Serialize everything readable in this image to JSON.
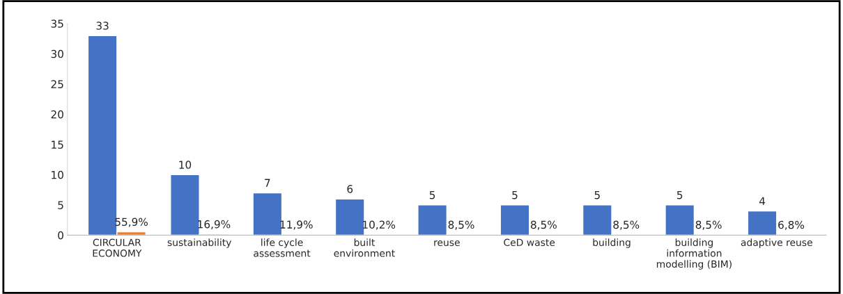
{
  "chart_data": {
    "type": "bar",
    "categories": [
      "CIRCULAR\nECONOMY",
      "sustainability",
      "life cycle\nassessment",
      "built\nenvironment",
      "reuse",
      "CeD waste",
      "building",
      "building\ninformation\nmodelling (BIM)",
      "adaptive reuse"
    ],
    "series": [
      {
        "color": "#4472c4",
        "values": [
          33,
          10,
          7,
          6,
          5,
          5,
          5,
          5,
          4
        ],
        "data_labels": true
      },
      {
        "color": "#ed7d31",
        "values": [
          0.559,
          0.169,
          0.119,
          0.102,
          0.085,
          0.085,
          0.085,
          0.085,
          0.068
        ],
        "value_labels": [
          "55,9%",
          "16,9%",
          "11,9%",
          "10,2%",
          "8,5%",
          "8,5%",
          "8,5%",
          "8,5%",
          "6,8%"
        ]
      }
    ],
    "ylim": [
      0,
      35
    ],
    "yticks": [
      0,
      5,
      10,
      15,
      20,
      25,
      30,
      35
    ],
    "grid": false,
    "legend": false
  }
}
